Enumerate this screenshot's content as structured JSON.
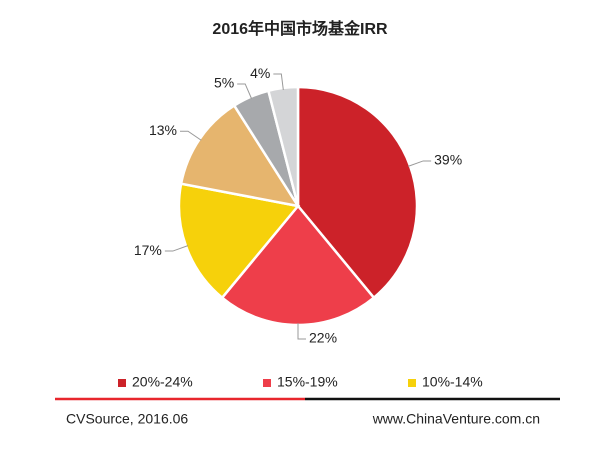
{
  "chart_data": {
    "type": "pie",
    "title": "2016年中国市场基金IRR",
    "categories": [
      "20%-24%",
      "15%-19%",
      "10%-14%",
      null,
      null,
      null
    ],
    "values": [
      39,
      22,
      17,
      13,
      5,
      4
    ],
    "value_labels": [
      "39%",
      "22%",
      "17%",
      "13%",
      "5%",
      "4%"
    ],
    "colors": [
      "#cc2229",
      "#ee3e4a",
      "#f6d10b",
      "#e6b56e",
      "#a7a9ac",
      "#d4d5d7"
    ]
  },
  "footer": {
    "source": "CVSource, 2016.06",
    "website": "www.ChinaVenture.com.cn"
  }
}
